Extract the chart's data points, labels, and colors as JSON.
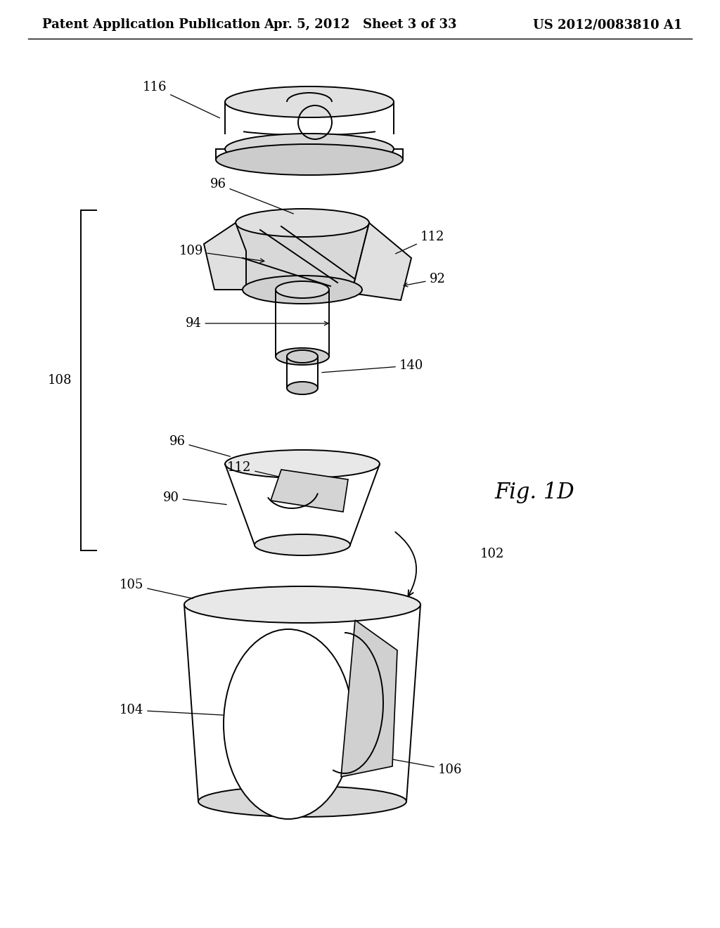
{
  "background_color": "#ffffff",
  "title_left": "Patent Application Publication",
  "title_center": "Apr. 5, 2012   Sheet 3 of 33",
  "title_right": "US 2012/0083810 A1",
  "fig_label": "Fig. 1D",
  "header_fontsize": 13
}
